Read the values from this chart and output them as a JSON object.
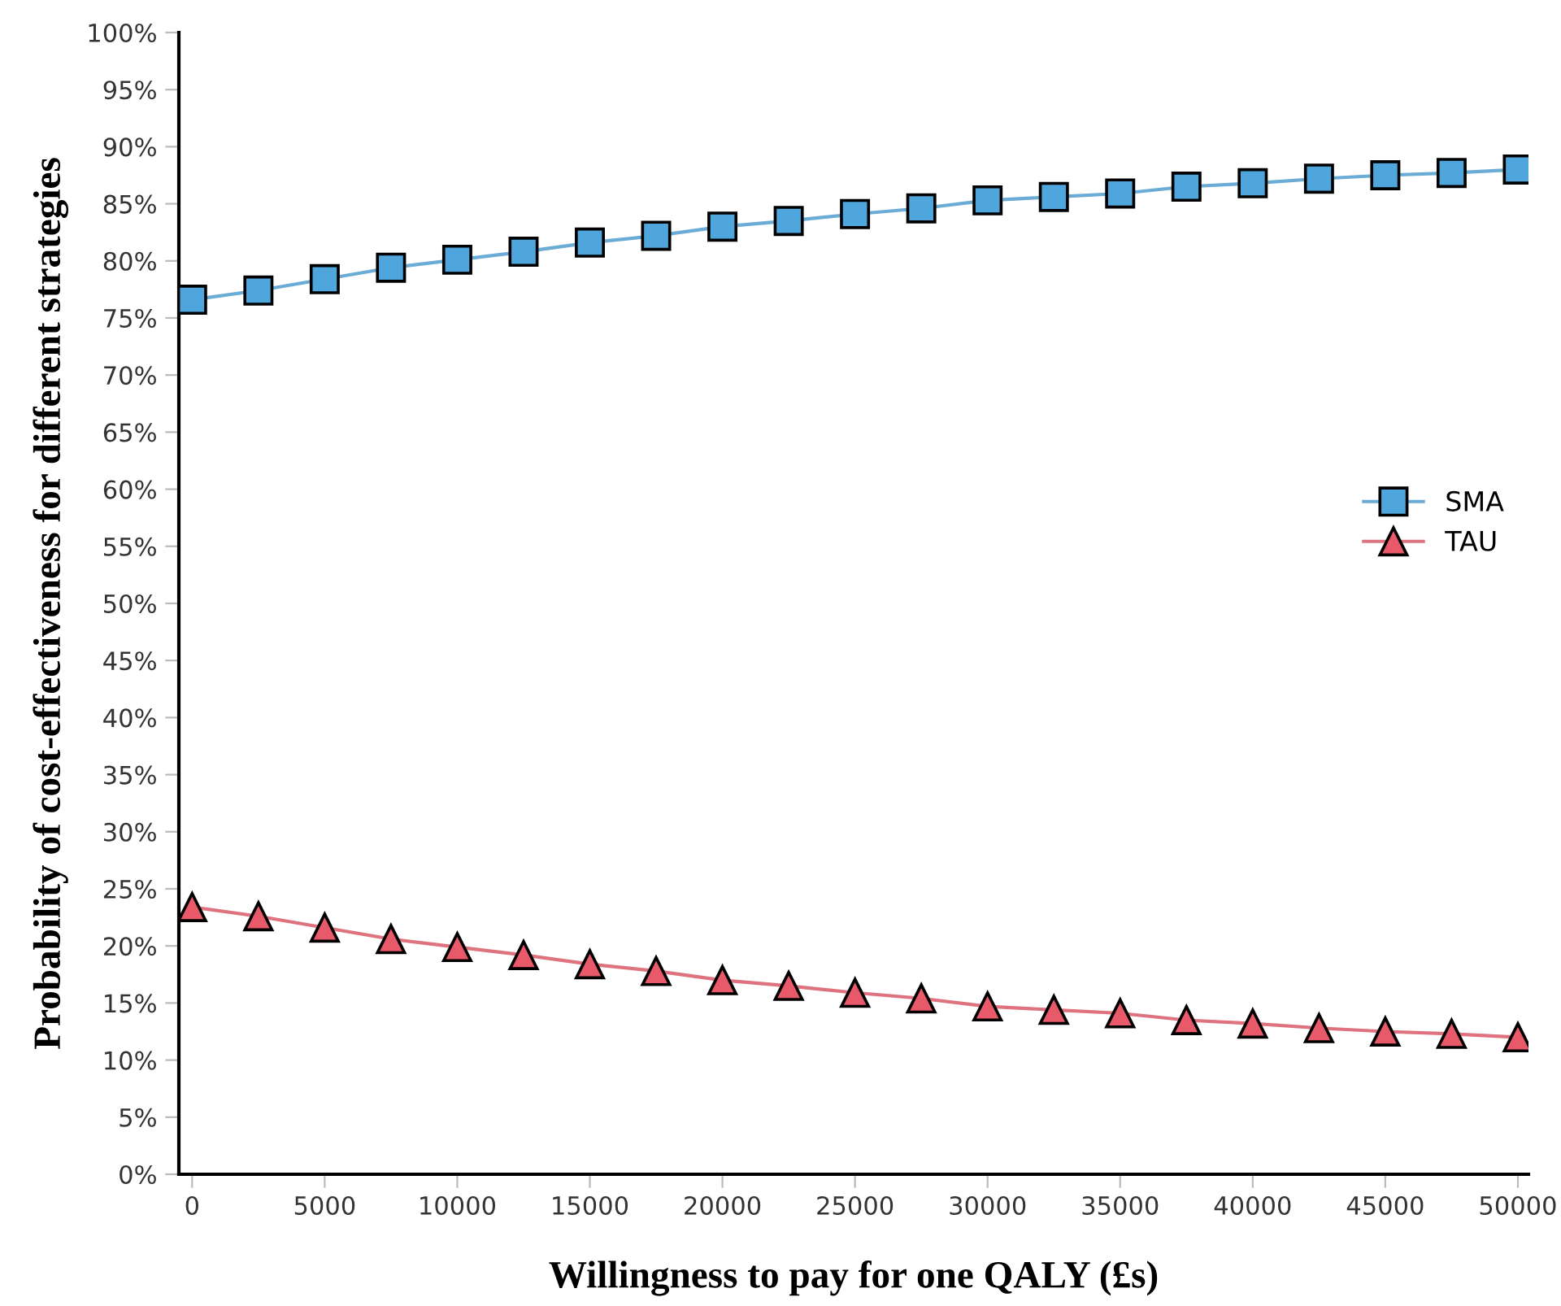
{
  "chart_data": {
    "type": "line",
    "xlabel": "Willingness to pay for one QALY (£s)",
    "ylabel": "Probability of cost-effectiveness for different strategies",
    "x": [
      0,
      2500,
      5000,
      7500,
      10000,
      12500,
      15000,
      17500,
      20000,
      22500,
      25000,
      27500,
      30000,
      32500,
      35000,
      37500,
      40000,
      42500,
      45000,
      47500,
      50000
    ],
    "series": [
      {
        "name": "SMA",
        "color": "#4ea6dc",
        "marker": "square",
        "values": [
          76.6,
          77.4,
          78.4,
          79.4,
          80.1,
          80.8,
          81.6,
          82.2,
          83.0,
          83.5,
          84.1,
          84.6,
          85.3,
          85.6,
          85.9,
          86.5,
          86.8,
          87.2,
          87.5,
          87.7,
          88.0
        ]
      },
      {
        "name": "TAU",
        "color": "#e8596a",
        "marker": "triangle",
        "values": [
          23.4,
          22.6,
          21.6,
          20.6,
          19.9,
          19.2,
          18.4,
          17.8,
          17.0,
          16.5,
          15.9,
          15.4,
          14.7,
          14.4,
          14.1,
          13.5,
          13.2,
          12.8,
          12.5,
          12.3,
          12.0
        ]
      }
    ],
    "xlim": [
      -500,
      50400
    ],
    "xticks": [
      0,
      5000,
      10000,
      15000,
      20000,
      25000,
      30000,
      35000,
      40000,
      45000,
      50000
    ],
    "ylim": [
      0,
      100
    ],
    "yticks": [
      {
        "value": 0,
        "label": "0%"
      },
      {
        "value": 5,
        "label": "5%"
      },
      {
        "value": 10,
        "label": "10%"
      },
      {
        "value": 15,
        "label": "15%"
      },
      {
        "value": 20,
        "label": "20%"
      },
      {
        "value": 25,
        "label": "25%"
      },
      {
        "value": 30,
        "label": "30%"
      },
      {
        "value": 35,
        "label": "35%"
      },
      {
        "value": 40,
        "label": "40%"
      },
      {
        "value": 45,
        "label": "45%"
      },
      {
        "value": 50,
        "label": "50%"
      },
      {
        "value": 55,
        "label": "55%"
      },
      {
        "value": 60,
        "label": "60%"
      },
      {
        "value": 65,
        "label": "65%"
      },
      {
        "value": 70,
        "label": "70%"
      },
      {
        "value": 75,
        "label": "75%"
      },
      {
        "value": 80,
        "label": "80%"
      },
      {
        "value": 85,
        "label": "85%"
      },
      {
        "value": 90,
        "label": "90%"
      },
      {
        "value": 95,
        "label": "95%"
      },
      {
        "value": 100,
        "label": "100%"
      }
    ],
    "grid": false,
    "legend": "right"
  }
}
